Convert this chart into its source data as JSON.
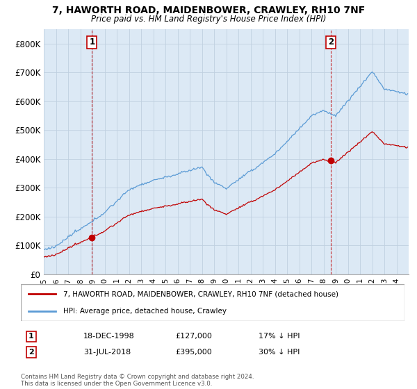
{
  "title": "7, HAWORTH ROAD, MAIDENBOWER, CRAWLEY, RH10 7NF",
  "subtitle": "Price paid vs. HM Land Registry's House Price Index (HPI)",
  "ylim": [
    0,
    850000
  ],
  "yticks": [
    0,
    100000,
    200000,
    300000,
    400000,
    500000,
    600000,
    700000,
    800000
  ],
  "ytick_labels": [
    "£0",
    "£100K",
    "£200K",
    "£300K",
    "£400K",
    "£500K",
    "£600K",
    "£700K",
    "£800K"
  ],
  "hpi_color": "#5b9bd5",
  "price_color": "#c00000",
  "chart_bg": "#dce9f5",
  "sale1_year": 1998.958,
  "sale1_price": 127000,
  "sale1_date": "18-DEC-1998",
  "sale1_label": "17% ↓ HPI",
  "sale2_year": 2018.583,
  "sale2_price": 395000,
  "sale2_date": "31-JUL-2018",
  "sale2_label": "30% ↓ HPI",
  "legend_line1": "7, HAWORTH ROAD, MAIDENBOWER, CRAWLEY, RH10 7NF (detached house)",
  "legend_line2": "HPI: Average price, detached house, Crawley",
  "footer": "Contains HM Land Registry data © Crown copyright and database right 2024.\nThis data is licensed under the Open Government Licence v3.0.",
  "background_color": "#ffffff",
  "grid_color": "#c0d0e0"
}
